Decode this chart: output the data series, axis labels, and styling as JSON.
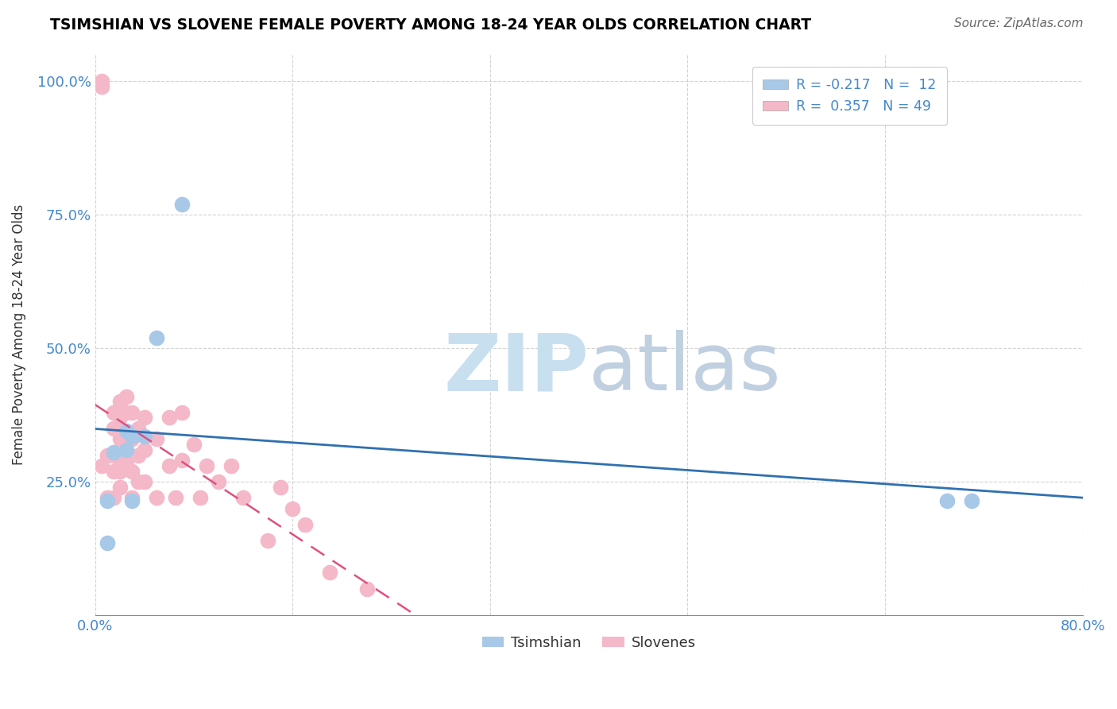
{
  "title": "TSIMSHIAN VS SLOVENE FEMALE POVERTY AMONG 18-24 YEAR OLDS CORRELATION CHART",
  "source": "Source: ZipAtlas.com",
  "ylabel": "Female Poverty Among 18-24 Year Olds",
  "xlim": [
    0.0,
    0.8
  ],
  "ylim": [
    0.0,
    1.05
  ],
  "tsimshian_color": "#a8c8e8",
  "slovene_color": "#f4b8c8",
  "trend_tsimshian_color": "#3070b0",
  "trend_slovene_color": "#e05080",
  "watermark_zip_color": "#c8dff0",
  "watermark_atlas_color": "#c0d0e0",
  "background_color": "#ffffff",
  "grid_color": "#c8c8c8",
  "axis_label_color": "#4488cc",
  "tsimshian_R": -0.217,
  "tsimshian_N": 12,
  "slovene_R": 0.357,
  "slovene_N": 49,
  "tsimshian_x": [
    0.015,
    0.025,
    0.025,
    0.03,
    0.04,
    0.05,
    0.07,
    0.01,
    0.01,
    0.69,
    0.71,
    0.03
  ],
  "tsimshian_y": [
    0.305,
    0.31,
    0.345,
    0.335,
    0.335,
    0.52,
    0.77,
    0.215,
    0.135,
    0.215,
    0.215,
    0.215
  ],
  "slovene_x": [
    0.005,
    0.005,
    0.005,
    0.01,
    0.01,
    0.015,
    0.015,
    0.015,
    0.015,
    0.015,
    0.02,
    0.02,
    0.02,
    0.02,
    0.02,
    0.02,
    0.025,
    0.025,
    0.025,
    0.025,
    0.03,
    0.03,
    0.03,
    0.03,
    0.035,
    0.035,
    0.035,
    0.04,
    0.04,
    0.04,
    0.05,
    0.05,
    0.06,
    0.06,
    0.065,
    0.07,
    0.07,
    0.08,
    0.085,
    0.09,
    0.1,
    0.11,
    0.12,
    0.14,
    0.15,
    0.16,
    0.17,
    0.19,
    0.22
  ],
  "slovene_y": [
    0.99,
    1.0,
    0.28,
    0.3,
    0.22,
    0.38,
    0.35,
    0.3,
    0.27,
    0.22,
    0.4,
    0.37,
    0.33,
    0.29,
    0.27,
    0.24,
    0.41,
    0.38,
    0.34,
    0.29,
    0.38,
    0.33,
    0.27,
    0.22,
    0.35,
    0.3,
    0.25,
    0.37,
    0.31,
    0.25,
    0.33,
    0.22,
    0.37,
    0.28,
    0.22,
    0.38,
    0.29,
    0.32,
    0.22,
    0.28,
    0.25,
    0.28,
    0.22,
    0.14,
    0.24,
    0.2,
    0.17,
    0.08,
    0.05
  ]
}
